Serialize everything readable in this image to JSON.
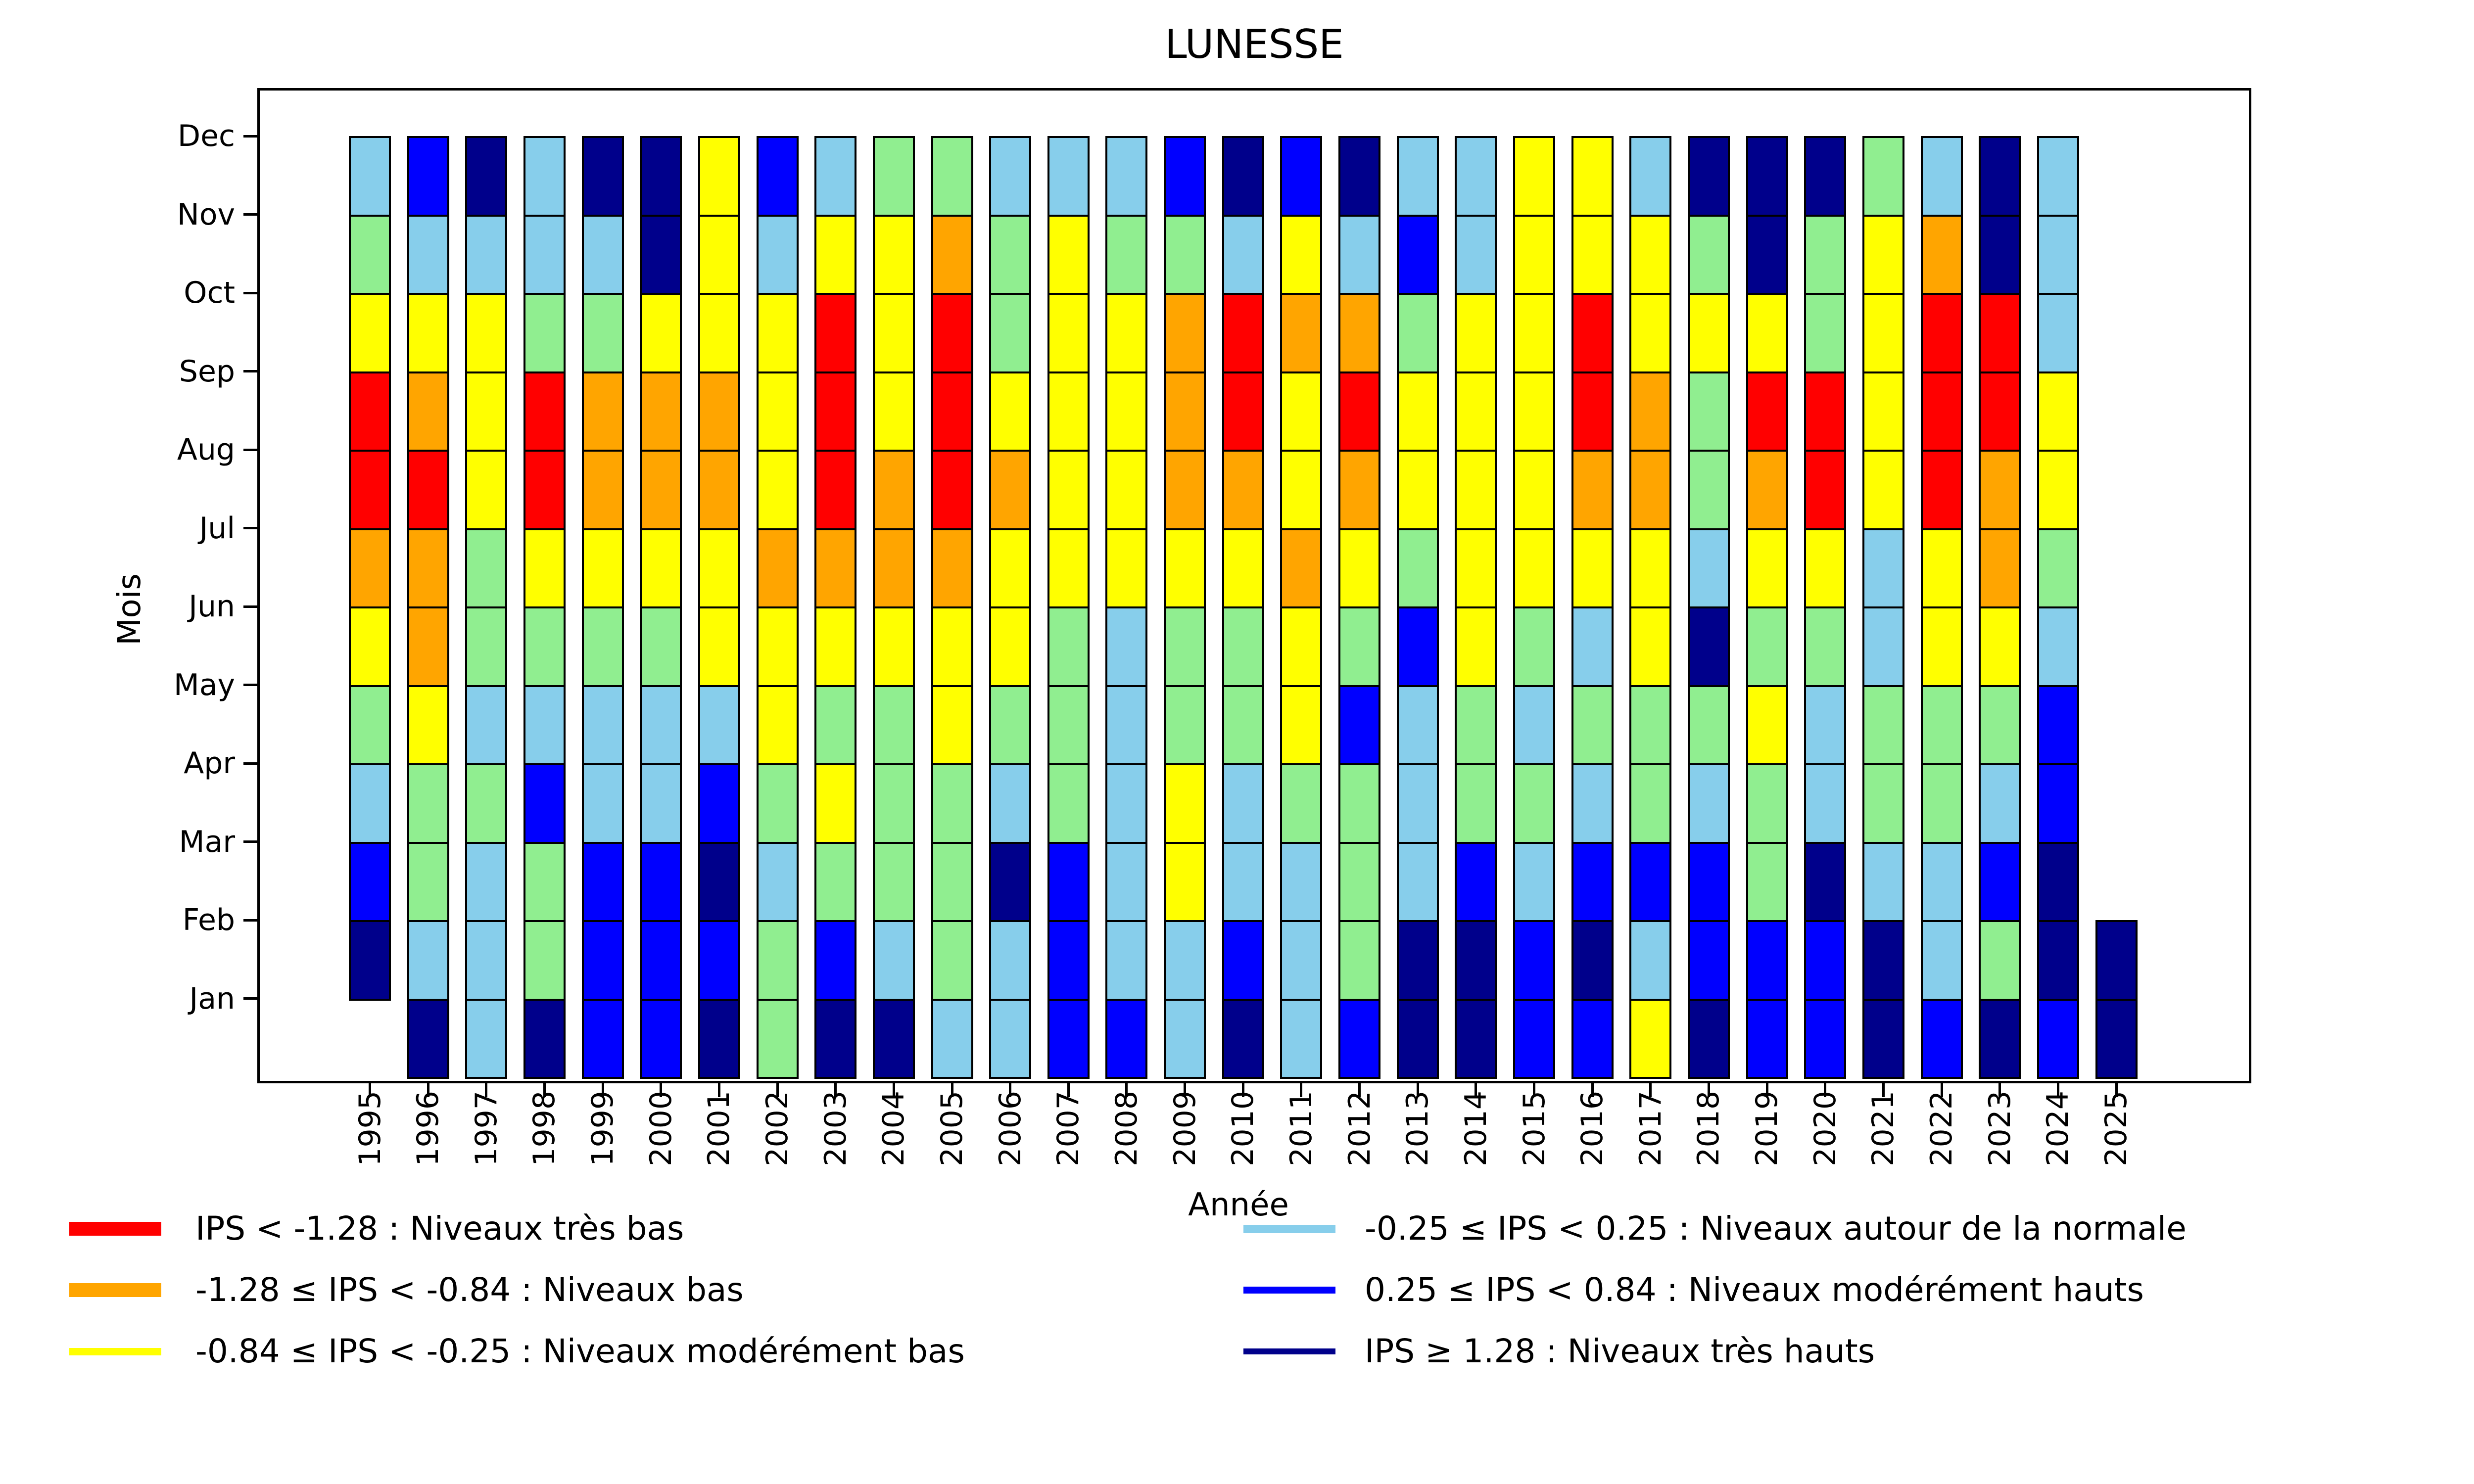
{
  "chart_data": {
    "type": "heatmap",
    "title": "LUNESSE",
    "xlabel": "Année",
    "ylabel": "Mois",
    "x": [
      1995,
      1996,
      1997,
      1998,
      1999,
      2000,
      2001,
      2002,
      2003,
      2004,
      2005,
      2006,
      2007,
      2008,
      2009,
      2010,
      2011,
      2012,
      2013,
      2014,
      2015,
      2016,
      2017,
      2018,
      2019,
      2020,
      2021,
      2022,
      2023,
      2024,
      2025
    ],
    "y_top_to_bottom": [
      "Dec",
      "Nov",
      "Oct",
      "Sep",
      "Aug",
      "Jul",
      "Jun",
      "May",
      "Apr",
      "Mar",
      "Feb",
      "Jan"
    ],
    "cell_codes_top_to_bottom_per_year": {
      "1995": "CGYRROYGCBN.",
      "1996": "BCYOROOYGGCN",
      "1997": "NCYYYGGCGCCC",
      "1998": "CCGRRYGCBGGN",
      "1999": "NCGOOYGCCBBB",
      "2000": "NNYOOYGCCBBB",
      "2001": "YYYOOYYCBNBN",
      "2002": "BCYYYOYYGCGG",
      "2003": "CYRRROYGYGBN",
      "2004": "GYYYOOYGGGCN",
      "2005": "GORRROYYGGGC",
      "2006": "CGGYOYYGCNCC",
      "2007": "CYYYYYGGGBBB",
      "2008": "CGYYYYCCCCCB",
      "2009": "BGOOOYGGYYCC",
      "2010": "NCRROYGGCCBN",
      "2011": "BYOYYOYYGCCC",
      "2012": "NCOROYGBGGGB",
      "2013": "CBGYYGBCCCNN",
      "2014": "CCYYYYYGGBNN",
      "2015": "YYYYYYGCGCBB",
      "2016": "YYRROYCGCBNB",
      "2017": "CYYOOYYGGBCY",
      "2018": "NGYGGCNGCBBN",
      "2019": "NNYROYGYGGBB",
      "2020": "NGGRRYGCCNBB",
      "2021": "GYYYYCCGGCNN",
      "2022": "CORRRYYGGCCB",
      "2023": "NNRROOYGCBGN",
      "2024": "CCCYYGCBBNNB",
      "2025": "..........NN"
    },
    "palette": {
      "R": "#ff0000",
      "O": "#ffa500",
      "Y": "#ffff00",
      "G": "#90ee90",
      "C": "#87ceeb",
      "B": "#0000ff",
      "N": "#00008b"
    },
    "grid": false,
    "legend_position": "below-chart-two-columns"
  },
  "legend": {
    "entries": [
      {
        "key": "R",
        "lw": 28,
        "label": "IPS < -1.28 : Niveaux très bas"
      },
      {
        "key": "O",
        "lw": 28,
        "label": "-1.28 ≤ IPS < -0.84 : Niveaux bas"
      },
      {
        "key": "Y",
        "lw": 15,
        "label": "-0.84 ≤ IPS < -0.25 : Niveaux modérément bas"
      },
      {
        "key": "C",
        "lw": 17,
        "label": "-0.25 ≤ IPS < 0.25 : Niveaux autour de la normale"
      },
      {
        "key": "B",
        "lw": 14,
        "label": "0.25 ≤ IPS < 0.84 : Niveaux modérément hauts"
      },
      {
        "key": "N",
        "lw": 12,
        "label": "IPS ≥ 1.28 : Niveaux très hauts"
      }
    ]
  }
}
